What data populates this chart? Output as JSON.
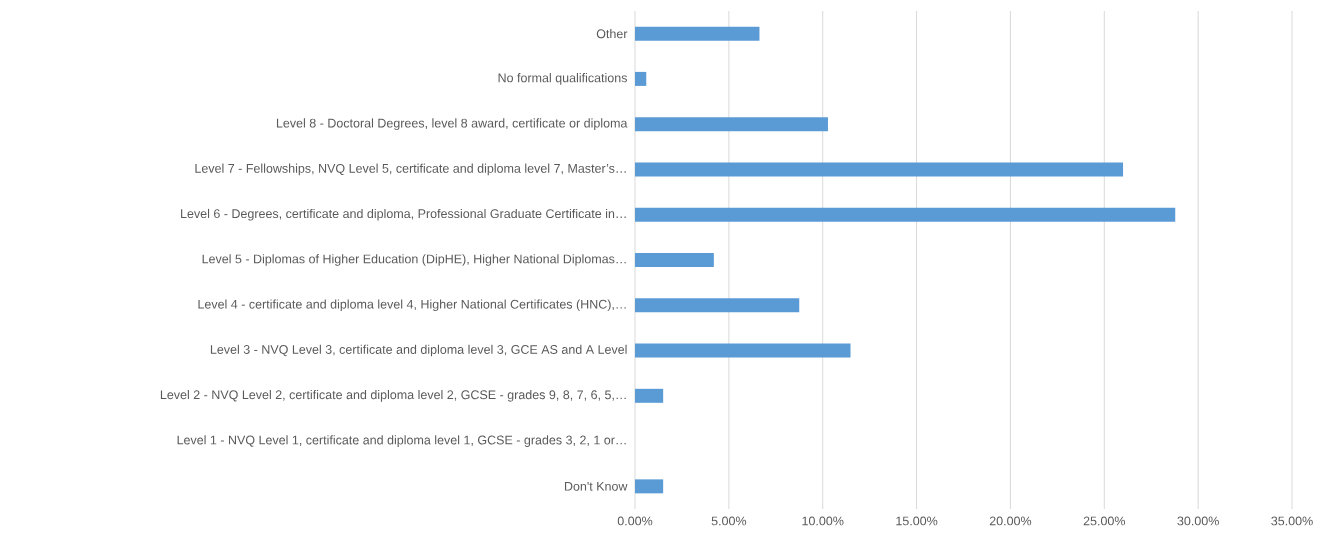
{
  "chart_data": {
    "type": "bar",
    "orientation": "horizontal",
    "categories": [
      "Other",
      "No formal qualifications",
      "Level 8 - Doctoral Degrees, level 8 award, certificate or diploma",
      "Level 7 - Fellowships, NVQ Level 5, certificate and diploma level 7, Master’s…",
      "Level 6 - Degrees, certificate and diploma, Professional Graduate Certificate in…",
      "Level 5 - Diplomas of Higher Education (DipHE), Higher National Diplomas…",
      "Level 4 - certificate and diploma level 4, Higher National Certificates (HNC),…",
      "Level 3 - NVQ Level 3, certificate and diploma level 3, GCE AS and A Level",
      "Level 2 - NVQ Level 2, certificate and diploma level 2, GCSE - grades 9, 8, 7, 6, 5,…",
      "Level 1 - NVQ Level 1, certificate and diploma level 1, GCSE - grades 3, 2, 1 or…",
      "Don't Know"
    ],
    "values": [
      6.63,
      0.6,
      10.28,
      26.0,
      28.78,
      4.2,
      8.75,
      11.48,
      1.5,
      0,
      1.5
    ],
    "color": "#5b9bd5",
    "xlim": [
      0,
      35
    ],
    "xticks": [
      {
        "value": 0,
        "label": "0.00%"
      },
      {
        "value": 5,
        "label": "5.00%"
      },
      {
        "value": 10,
        "label": "10.00%"
      },
      {
        "value": 15,
        "label": "15.00%"
      },
      {
        "value": 20,
        "label": "20.00%"
      },
      {
        "value": 25,
        "label": "25.00%"
      },
      {
        "value": 30,
        "label": "30.00%"
      },
      {
        "value": 35,
        "label": "35.00%"
      }
    ],
    "grid": "x"
  }
}
